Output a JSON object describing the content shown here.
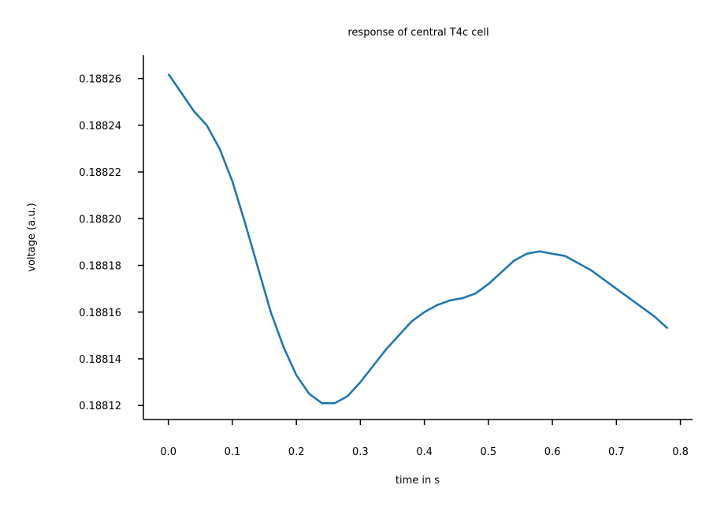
{
  "chart_data": {
    "type": "line",
    "title": "response of central T4c cell",
    "xlabel": "time in s",
    "ylabel": "voltage (a.u.)",
    "xlim": [
      -0.039,
      0.819
    ],
    "ylim": [
      0.188114,
      0.18827
    ],
    "xticks": [
      0.0,
      0.1,
      0.2,
      0.3,
      0.4,
      0.5,
      0.6,
      0.7,
      0.8
    ],
    "xtick_labels": [
      "0.0",
      "0.1",
      "0.2",
      "0.3",
      "0.4",
      "0.5",
      "0.6",
      "0.7",
      "0.8"
    ],
    "yticks": [
      0.18812,
      0.18814,
      0.18816,
      0.18818,
      0.1882,
      0.18822,
      0.18824,
      0.18826
    ],
    "ytick_labels": [
      "0.18812",
      "0.18814",
      "0.18816",
      "0.18818",
      "0.18820",
      "0.18822",
      "0.18824",
      "0.18826"
    ],
    "grid": false,
    "series": [
      {
        "name": "response of central T4c cell",
        "color": "#1f77b4",
        "x": [
          0.0,
          0.02,
          0.04,
          0.06,
          0.08,
          0.1,
          0.12,
          0.14,
          0.16,
          0.18,
          0.2,
          0.22,
          0.24,
          0.26,
          0.28,
          0.3,
          0.32,
          0.34,
          0.36,
          0.38,
          0.4,
          0.42,
          0.44,
          0.46,
          0.48,
          0.5,
          0.52,
          0.54,
          0.56,
          0.58,
          0.6,
          0.62,
          0.64,
          0.66,
          0.68,
          0.7,
          0.72,
          0.74,
          0.76,
          0.78
        ],
        "values": [
          0.188262,
          0.188254,
          0.188246,
          0.18824,
          0.18823,
          0.188216,
          0.188198,
          0.188179,
          0.18816,
          0.188145,
          0.188133,
          0.188125,
          0.188121,
          0.188121,
          0.188124,
          0.18813,
          0.188137,
          0.188144,
          0.18815,
          0.188156,
          0.18816,
          0.188163,
          0.188165,
          0.188166,
          0.188168,
          0.188172,
          0.188177,
          0.188182,
          0.188185,
          0.188186,
          0.188185,
          0.188184,
          0.188181,
          0.188178,
          0.188174,
          0.18817,
          0.188166,
          0.188162,
          0.188158,
          0.188153
        ]
      }
    ]
  }
}
